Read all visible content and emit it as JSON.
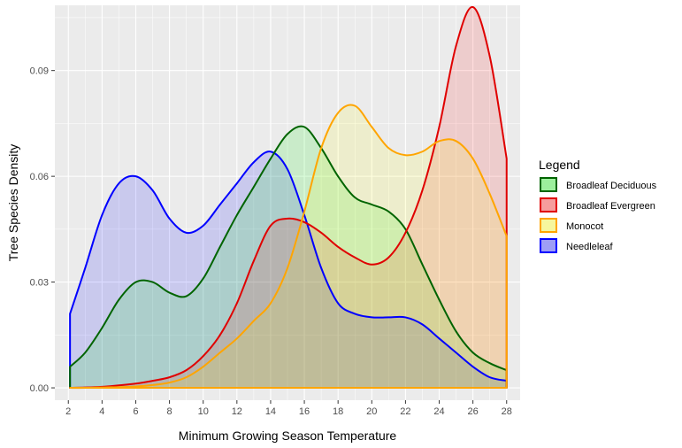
{
  "chart_data": {
    "type": "area",
    "xlabel": "Minimum Growing Season Temperature",
    "ylabel": "Tree Species Density",
    "xlim": [
      1.2,
      28.8
    ],
    "ylim": [
      -0.0035,
      0.1085
    ],
    "x_ticks": [
      2,
      4,
      6,
      8,
      10,
      12,
      14,
      16,
      18,
      20,
      22,
      24,
      26,
      28
    ],
    "x_tick_labels": [
      "2",
      "4",
      "6",
      "8",
      "10",
      "12",
      "14",
      "16",
      "18",
      "20",
      "22",
      "24",
      "26",
      "28"
    ],
    "y_ticks": [
      0,
      0.03,
      0.06,
      0.09
    ],
    "y_tick_labels": [
      "0.00",
      "0.03",
      "0.06",
      "0.09"
    ],
    "grid": true,
    "legend": {
      "title": "Legend",
      "position": "right",
      "entries": [
        "Broadleaf Deciduous",
        "Broadleaf Evergreen",
        "Monocot",
        "Needleleaf"
      ]
    },
    "series": [
      {
        "name": "Needleleaf",
        "line_color": "#0000ff",
        "fill_color": "#0000ff",
        "fill_opacity": 0.14,
        "x": [
          2.1,
          3,
          4,
          5,
          6,
          7,
          8,
          9,
          10,
          11,
          12,
          13,
          14,
          15,
          16,
          17,
          18,
          19,
          20,
          21,
          22,
          23,
          24,
          25,
          26,
          27,
          28
        ],
        "y": [
          0.021,
          0.034,
          0.049,
          0.058,
          0.06,
          0.056,
          0.048,
          0.044,
          0.046,
          0.052,
          0.058,
          0.064,
          0.067,
          0.062,
          0.049,
          0.034,
          0.024,
          0.021,
          0.02,
          0.02,
          0.02,
          0.018,
          0.014,
          0.01,
          0.006,
          0.003,
          0.002
        ]
      },
      {
        "name": "Broadleaf Deciduous",
        "line_color": "#006400",
        "fill_color": "#00ee00",
        "fill_opacity": 0.14,
        "x": [
          2.1,
          3,
          4,
          5,
          6,
          7,
          8,
          9,
          10,
          11,
          12,
          13,
          14,
          15,
          16,
          17,
          18,
          19,
          20,
          21,
          22,
          23,
          24,
          25,
          26,
          27,
          28
        ],
        "y": [
          0.006,
          0.01,
          0.017,
          0.025,
          0.03,
          0.03,
          0.027,
          0.026,
          0.031,
          0.04,
          0.049,
          0.057,
          0.065,
          0.072,
          0.074,
          0.068,
          0.06,
          0.054,
          0.052,
          0.05,
          0.045,
          0.035,
          0.025,
          0.016,
          0.01,
          0.007,
          0.005
        ]
      },
      {
        "name": "Broadleaf Evergreen",
        "line_color": "#e00000",
        "fill_color": "#ff0000",
        "fill_opacity": 0.13,
        "x": [
          2.1,
          3,
          4,
          5,
          6,
          7,
          8,
          9,
          10,
          11,
          12,
          13,
          14,
          15,
          16,
          17,
          18,
          19,
          20,
          21,
          22,
          23,
          24,
          25,
          26,
          27,
          28
        ],
        "y": [
          0.0,
          0.0001,
          0.0003,
          0.0007,
          0.0012,
          0.002,
          0.003,
          0.005,
          0.009,
          0.015,
          0.024,
          0.036,
          0.046,
          0.048,
          0.047,
          0.044,
          0.04,
          0.037,
          0.035,
          0.037,
          0.044,
          0.056,
          0.074,
          0.097,
          0.108,
          0.094,
          0.065
        ]
      },
      {
        "name": "Monocot",
        "line_color": "#ffa500",
        "fill_color": "#ffff00",
        "fill_opacity": 0.13,
        "x": [
          2.1,
          3,
          4,
          5,
          6,
          7,
          8,
          9,
          10,
          11,
          12,
          13,
          14,
          15,
          16,
          17,
          18,
          19,
          20,
          21,
          22,
          23,
          24,
          25,
          26,
          27,
          28
        ],
        "y": [
          0.0,
          0.0,
          0.0001,
          0.0002,
          0.0004,
          0.0008,
          0.0015,
          0.003,
          0.006,
          0.01,
          0.014,
          0.019,
          0.024,
          0.034,
          0.05,
          0.068,
          0.078,
          0.08,
          0.074,
          0.068,
          0.066,
          0.067,
          0.07,
          0.07,
          0.065,
          0.055,
          0.043
        ]
      }
    ]
  }
}
